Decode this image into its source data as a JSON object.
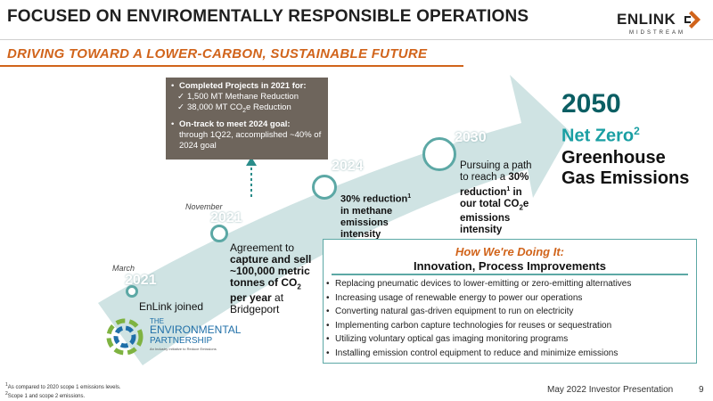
{
  "header": {
    "title": "FOCUSED ON ENVIROMENTALLY RESPONSIBLE OPERATIONS",
    "subtitle": "DRIVING TOWARD A LOWER-CARBON, SUSTAINABLE FUTURE",
    "logo_text": "ENLINK",
    "logo_sub": "MIDSTREAM"
  },
  "callout": {
    "heading": "Completed Projects in 2021 for:",
    "item1": "1,500 MT Methane Reduction",
    "item2_pre": "38,000 MT CO",
    "item2_sub": "2",
    "item2_mid": "e Reduction",
    "ontrack_bold": "On-track to meet 2024 goal:",
    "ontrack_text": "through 1Q22, accomplished ~40% of 2024 goal"
  },
  "milestones": {
    "m1": {
      "month": "March",
      "year": "2021",
      "text": "EnLink joined"
    },
    "m2": {
      "month": "November",
      "year": "2021",
      "line1": "Agreement to",
      "line2": "capture and sell",
      "line3": "~100,000 metric",
      "line4": "tonnes of CO",
      "line4_sub": "2",
      "line5": "per year",
      "line5_rest": " at",
      "line6": "Bridgeport"
    },
    "m3": {
      "year": "2024",
      "line1": "30% reduction",
      "line1_sup": "1",
      "line2": "in methane",
      "line3": "emissions",
      "line4": "intensity"
    },
    "m4": {
      "year": "2030",
      "line1": "Pursuing a path",
      "line2": "to reach a ",
      "line2_bold": "30%",
      "line3": "reduction",
      "line3_sup": "1",
      "line3_rest": " in",
      "line4": "our total CO",
      "line4_sub": "2",
      "line4_rest": "e",
      "line5": "emissions",
      "line6": "intensity"
    }
  },
  "netzero": {
    "year": "2050",
    "line1": "Net Zero",
    "line1_sup": "2",
    "line2": "Greenhouse",
    "line3": "Gas Emissions"
  },
  "partnership": {
    "line1": "THE",
    "line2": "ENVIRONMENTAL",
    "line3": "PARTNERSHIP",
    "tagline": "An Industry Initiative to Reduce Emissions"
  },
  "how": {
    "title": "How We're Doing It:",
    "subtitle": "Innovation, Process Improvements",
    "items": [
      "Replacing pneumatic devices to lower-emitting or zero-emitting alternatives",
      "Increasing usage of renewable energy to power our operations",
      "Converting natural gas-driven equipment to run on electricity",
      "Implementing carbon capture technologies for reuses or sequestration",
      "Utilizing voluntary optical gas imaging monitoring programs",
      "Installing emission control equipment to reduce and minimize emissions"
    ]
  },
  "footnotes": {
    "f1": "As compared to 2020 scope 1 emissions levels.",
    "f2": "Scope 1 and scope 2 emissions."
  },
  "footer": {
    "presentation": "May 2022 Investor Presentation",
    "page": "9"
  },
  "colors": {
    "accent": "#d1641b",
    "teal": "#5ca8a5",
    "dark_teal": "#0b5e63",
    "arrow": "#cfe3e3",
    "callout_bg": "#6e655c"
  }
}
